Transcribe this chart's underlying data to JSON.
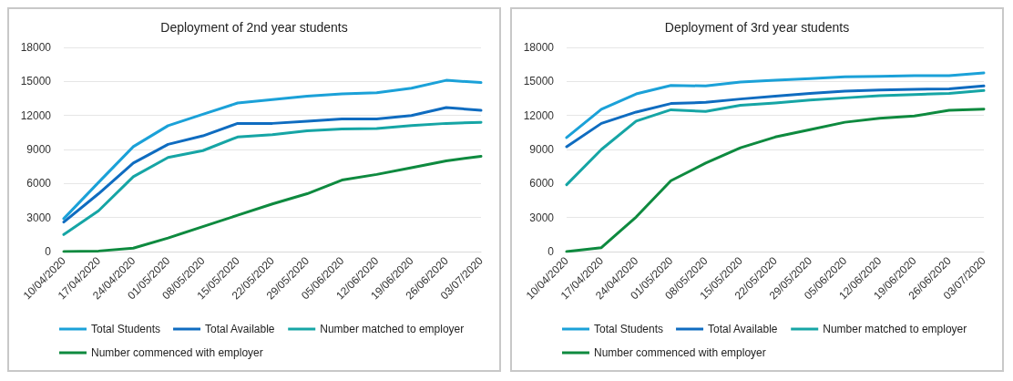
{
  "chart_data": [
    {
      "type": "line",
      "title": "Deployment of 2nd year students",
      "categories": [
        "10/04/2020",
        "17/04/2020",
        "24/04/2020",
        "01/05/2020",
        "08/05/2020",
        "15/05/2020",
        "22/05/2020",
        "29/05/2020",
        "05/06/2020",
        "12/06/2020",
        "19/06/2020",
        "26/06/2020",
        "03/07/2020"
      ],
      "series": [
        {
          "name": "Total Students",
          "color": "#1ba1d8",
          "values": [
            2900,
            6100,
            9250,
            11100,
            12100,
            13100,
            13400,
            13700,
            13900,
            14000,
            14400,
            15100,
            14900
          ]
        },
        {
          "name": "Total Available",
          "color": "#0f6cc0",
          "values": [
            2600,
            5100,
            7800,
            9450,
            10200,
            11300,
            11300,
            11500,
            11700,
            11700,
            12000,
            12700,
            12450
          ]
        },
        {
          "name": "Number matched to employer",
          "color": "#16a5a5",
          "values": [
            1500,
            3600,
            6600,
            8300,
            8900,
            10100,
            10300,
            10650,
            10800,
            10850,
            11100,
            11300,
            11400
          ]
        },
        {
          "name": "Number commenced with employer",
          "color": "#0e8a3f",
          "values": [
            0,
            50,
            300,
            1200,
            2200,
            3200,
            4200,
            5100,
            6300,
            6800,
            7400,
            8000,
            8400
          ]
        }
      ],
      "ylim": [
        0,
        18000
      ],
      "yticks": [
        0,
        3000,
        6000,
        9000,
        12000,
        15000,
        18000
      ],
      "grid": "y",
      "legend": "bottom",
      "marker": "none",
      "line_style": "solid"
    },
    {
      "type": "line",
      "title": "Deployment of 3rd year students",
      "categories": [
        "10/04/2020",
        "17/04/2020",
        "24/04/2020",
        "01/05/2020",
        "08/05/2020",
        "15/05/2020",
        "22/05/2020",
        "29/05/2020",
        "05/06/2020",
        "12/06/2020",
        "19/06/2020",
        "26/06/2020",
        "03/07/2020"
      ],
      "series": [
        {
          "name": "Total Students",
          "color": "#1ba1d8",
          "values": [
            10050,
            12550,
            13900,
            14650,
            14600,
            14950,
            15100,
            15250,
            15400,
            15450,
            15500,
            15500,
            15750
          ]
        },
        {
          "name": "Total Available",
          "color": "#0f6cc0",
          "values": [
            9250,
            11300,
            12300,
            13050,
            13150,
            13450,
            13700,
            13950,
            14150,
            14250,
            14300,
            14350,
            14600
          ]
        },
        {
          "name": "Number matched to employer",
          "color": "#16a5a5",
          "values": [
            5900,
            9000,
            11500,
            12500,
            12350,
            12900,
            13100,
            13350,
            13550,
            13750,
            13850,
            13950,
            14200
          ]
        },
        {
          "name": "Number commenced with employer",
          "color": "#0e8a3f",
          "values": [
            0,
            350,
            3050,
            6250,
            7800,
            9150,
            10100,
            10750,
            11400,
            11750,
            11950,
            12450,
            12550
          ]
        }
      ],
      "ylim": [
        0,
        18000
      ],
      "yticks": [
        0,
        3000,
        6000,
        9000,
        12000,
        15000,
        18000
      ],
      "grid": "y",
      "legend": "bottom",
      "marker": "none",
      "line_style": "solid"
    }
  ]
}
